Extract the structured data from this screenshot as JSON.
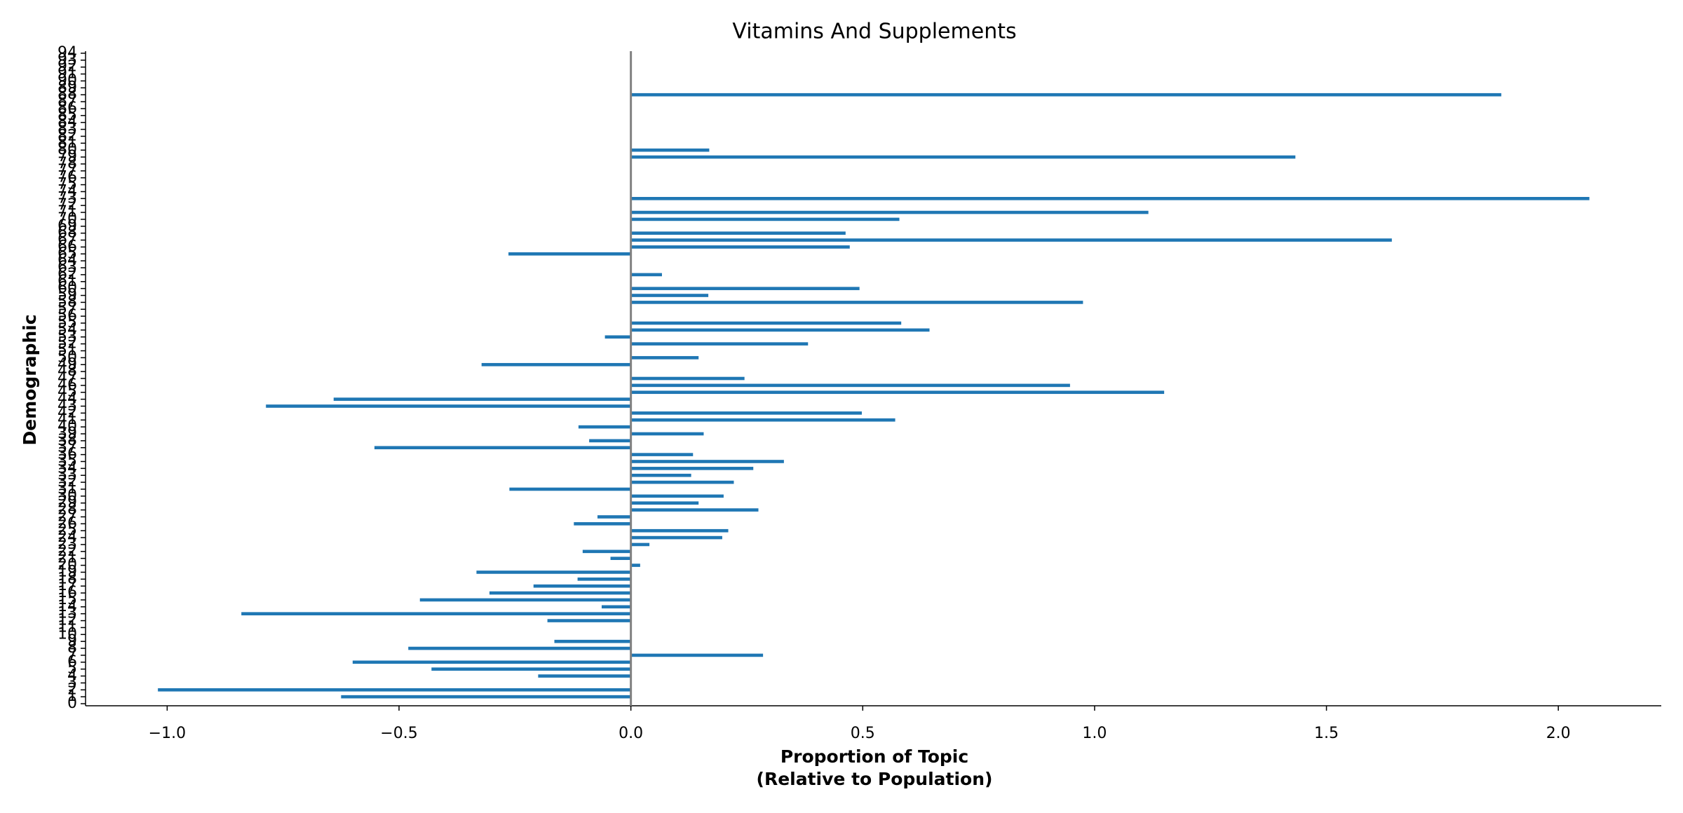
{
  "chart_data": {
    "type": "barh",
    "title": "Vitamins And Supplements",
    "xlabel": "Proportion of Topic\n(Relative to Population)",
    "ylabel": "Demographic",
    "categories": [
      "0",
      "1",
      "2",
      "3",
      "4",
      "5",
      "6",
      "7",
      "8",
      "9",
      "10",
      "11",
      "12",
      "13",
      "14",
      "15",
      "16",
      "17",
      "18",
      "19",
      "20",
      "21",
      "22",
      "23",
      "24",
      "25",
      "26",
      "27",
      "28",
      "29",
      "30",
      "31",
      "32",
      "33",
      "34",
      "35",
      "36",
      "37",
      "38",
      "39",
      "40",
      "41",
      "42",
      "43",
      "44",
      "45",
      "46",
      "47",
      "48",
      "49",
      "50",
      "51",
      "52",
      "53",
      "54",
      "55",
      "56",
      "57",
      "58",
      "59",
      "60",
      "61",
      "62",
      "63",
      "64",
      "65",
      "66",
      "67",
      "68",
      "69",
      "70",
      "71",
      "72",
      "73",
      "74",
      "75",
      "76",
      "77",
      "78",
      "79",
      "80",
      "81",
      "82",
      "83",
      "84",
      "85",
      "86",
      "87",
      "88",
      "89",
      "90",
      "91",
      "92",
      "93",
      "94"
    ],
    "values": [
      0,
      -0.625,
      -1.02,
      0,
      -0.2,
      -0.43,
      -0.6,
      0.285,
      -0.48,
      -0.165,
      0,
      0,
      -0.18,
      -0.84,
      -0.063,
      -0.455,
      -0.305,
      -0.21,
      -0.115,
      -0.333,
      0.02,
      -0.044,
      -0.104,
      0.04,
      0.197,
      0.21,
      -0.123,
      -0.072,
      0.275,
      0.146,
      0.2,
      -0.262,
      0.222,
      0.13,
      0.264,
      0.33,
      0.134,
      -0.553,
      -0.09,
      0.157,
      -0.113,
      0.57,
      0.498,
      -0.787,
      -0.641,
      1.15,
      0.947,
      0.245,
      0,
      -0.322,
      0.146,
      0,
      0.382,
      -0.056,
      0.644,
      0.583,
      0,
      0,
      0.975,
      0.167,
      0.493,
      0,
      0.067,
      0,
      0,
      -0.264,
      0.472,
      1.641,
      0.463,
      0,
      0.579,
      1.116,
      0,
      2.067,
      0,
      0,
      0,
      0,
      0,
      1.433,
      0.169,
      0,
      0,
      0,
      0,
      0,
      0,
      0,
      1.877,
      0,
      0,
      0,
      0,
      0,
      0
    ],
    "color": "#1f77b4",
    "zero_line_color": "#808080",
    "xlim": [
      -1.176,
      2.222
    ],
    "xticks": [
      {
        "value": -1.0,
        "label": "−1.0"
      },
      {
        "value": -0.5,
        "label": "−0.5"
      },
      {
        "value": 0.0,
        "label": "0.0"
      },
      0.5,
      {
        "value": 1.0,
        "label": "1.0"
      },
      1.5,
      {
        "value": 2.0,
        "label": "2.0"
      }
    ]
  }
}
